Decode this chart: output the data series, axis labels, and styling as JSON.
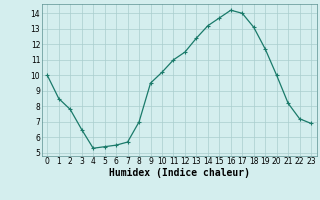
{
  "x": [
    0,
    1,
    2,
    3,
    4,
    5,
    6,
    7,
    8,
    9,
    10,
    11,
    12,
    13,
    14,
    15,
    16,
    17,
    18,
    19,
    20,
    21,
    22,
    23
  ],
  "y": [
    10,
    8.5,
    7.8,
    6.5,
    5.3,
    5.4,
    5.5,
    5.7,
    7.0,
    9.5,
    10.2,
    11.0,
    11.5,
    12.4,
    13.2,
    13.7,
    14.2,
    14.0,
    13.1,
    11.7,
    10.0,
    8.2,
    7.2,
    6.9
  ],
  "line_color": "#1a7a6a",
  "marker": "+",
  "marker_size": 3,
  "bg_color": "#d4eeee",
  "grid_color": "#aacece",
  "xlabel": "Humidex (Indice chaleur)",
  "xlabel_fontsize": 7,
  "tick_fontsize": 5.5,
  "ylim": [
    4.8,
    14.6
  ],
  "xlim": [
    -0.5,
    23.5
  ],
  "yticks": [
    5,
    6,
    7,
    8,
    9,
    10,
    11,
    12,
    13,
    14
  ],
  "xticks": [
    0,
    1,
    2,
    3,
    4,
    5,
    6,
    7,
    8,
    9,
    10,
    11,
    12,
    13,
    14,
    15,
    16,
    17,
    18,
    19,
    20,
    21,
    22,
    23
  ]
}
